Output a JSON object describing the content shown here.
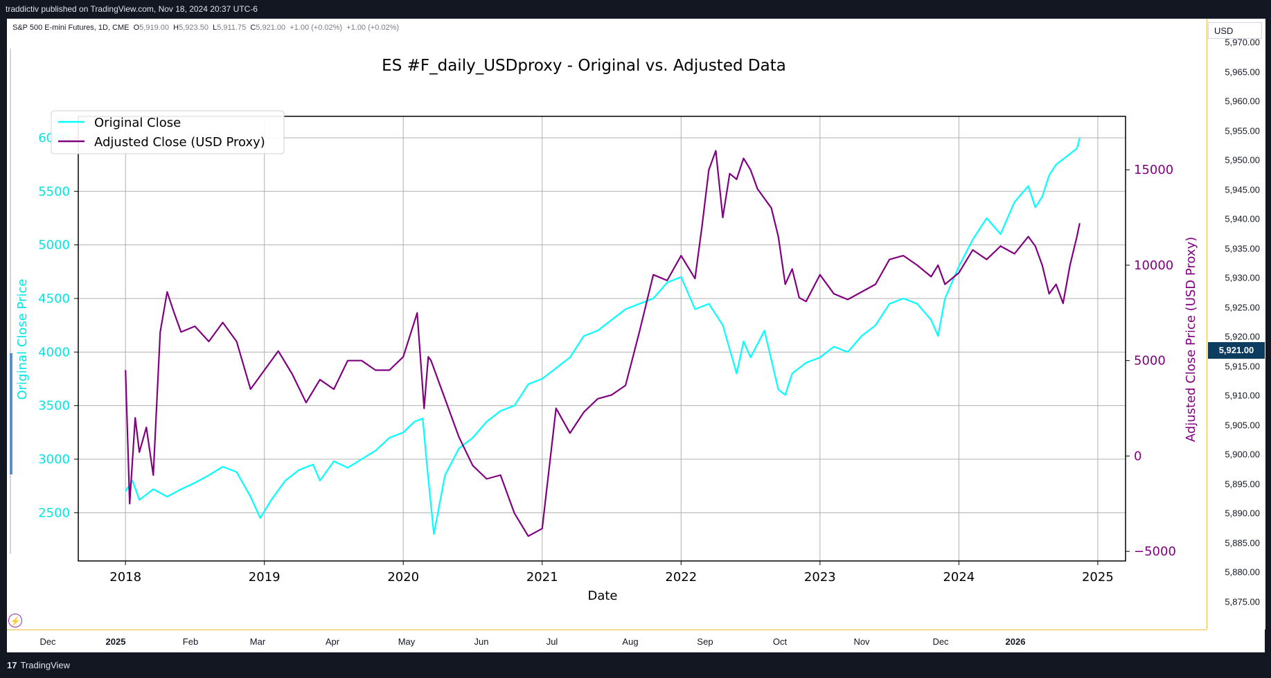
{
  "header": {
    "publisher": "traddictiv published on TradingView.com, Nov 18, 2024 20:37 UTC-6"
  },
  "symbol_legend": {
    "name": "S&P 500 E-mini Futures, 1D, CME",
    "o_label": "O",
    "o": "5,919.00",
    "h_label": "H",
    "h": "5,923.50",
    "l_label": "L",
    "l": "5,911.75",
    "c_label": "C",
    "c": "5,921.00",
    "change": "+1.00 (+0.02%)",
    "change2": "+1.00 (+0.02%)"
  },
  "price_axis": {
    "currency": "USD",
    "ticks": [
      "5,970.00",
      "5,965.00",
      "5,960.00",
      "5,955.00",
      "5,950.00",
      "5,945.00",
      "5,940.00",
      "5,935.00",
      "5,930.00",
      "5,925.00",
      "5,920.00",
      "5,915.00",
      "5,910.00",
      "5,905.00",
      "5,900.00",
      "5,895.00",
      "5,890.00",
      "5,885.00",
      "5,880.00",
      "5,875.00"
    ],
    "last_price": "5,921.00"
  },
  "time_axis": {
    "ticks": [
      "Dec",
      "2025",
      "Feb",
      "Mar",
      "Apr",
      "May",
      "Jun",
      "Jul",
      "Aug",
      "Sep",
      "Oct",
      "Nov",
      "Dec",
      "2026"
    ]
  },
  "footer": {
    "logo": "17",
    "brand": "TradingView"
  },
  "colors": {
    "original": "#00FFFF",
    "adjusted": "#800080",
    "price_label_bg": "#0d3c61"
  },
  "chart_data": {
    "type": "line",
    "title": "ES #F_daily_USDproxy - Original vs. Adjusted Data",
    "xlabel": "Date",
    "ylabel": "Original Close Price",
    "y2label": "Adjusted Close Price (USD Proxy)",
    "xlim": [
      2017.66,
      2025.2
    ],
    "ylim": [
      2050,
      6200
    ],
    "y2lim": [
      -5500,
      17800
    ],
    "x_ticks": [
      "2018",
      "2019",
      "2020",
      "2021",
      "2022",
      "2023",
      "2024",
      "2025"
    ],
    "y_ticks": [
      "2500",
      "3000",
      "3500",
      "4000",
      "4500",
      "5000",
      "5500",
      "6000"
    ],
    "y2_ticks": [
      "−5000",
      "0",
      "5000",
      "10000",
      "15000"
    ],
    "legend_position": "upper-left",
    "grid": true,
    "series": [
      {
        "name": "Original Close",
        "axis": "left",
        "color": "#00FFFF",
        "x": [
          2018.0,
          2018.05,
          2018.1,
          2018.2,
          2018.3,
          2018.4,
          2018.5,
          2018.6,
          2018.7,
          2018.8,
          2018.9,
          2018.97,
          2019.05,
          2019.15,
          2019.25,
          2019.35,
          2019.4,
          2019.5,
          2019.6,
          2019.7,
          2019.8,
          2019.9,
          2020.0,
          2020.08,
          2020.14,
          2020.17,
          2020.22,
          2020.3,
          2020.4,
          2020.5,
          2020.6,
          2020.7,
          2020.8,
          2020.9,
          2021.0,
          2021.1,
          2021.2,
          2021.3,
          2021.4,
          2021.5,
          2021.6,
          2021.7,
          2021.8,
          2021.9,
          2022.0,
          2022.1,
          2022.2,
          2022.3,
          2022.4,
          2022.45,
          2022.5,
          2022.6,
          2022.7,
          2022.75,
          2022.8,
          2022.9,
          2023.0,
          2023.1,
          2023.2,
          2023.3,
          2023.4,
          2023.5,
          2023.6,
          2023.7,
          2023.8,
          2023.85,
          2023.9,
          2024.0,
          2024.1,
          2024.2,
          2024.3,
          2024.4,
          2024.5,
          2024.55,
          2024.6,
          2024.65,
          2024.7,
          2024.8,
          2024.85,
          2024.87
        ],
        "values": [
          2700,
          2800,
          2620,
          2720,
          2650,
          2720,
          2780,
          2850,
          2930,
          2880,
          2650,
          2450,
          2620,
          2800,
          2900,
          2950,
          2800,
          2980,
          2920,
          3000,
          3080,
          3200,
          3250,
          3350,
          3380,
          2950,
          2300,
          2850,
          3100,
          3200,
          3350,
          3450,
          3500,
          3700,
          3750,
          3850,
          3950,
          4150,
          4200,
          4300,
          4400,
          4450,
          4500,
          4650,
          4700,
          4400,
          4450,
          4250,
          3800,
          4100,
          3950,
          4200,
          3650,
          3600,
          3800,
          3900,
          3950,
          4050,
          4000,
          4150,
          4250,
          4450,
          4500,
          4450,
          4300,
          4150,
          4500,
          4800,
          5050,
          5250,
          5100,
          5400,
          5550,
          5350,
          5450,
          5650,
          5750,
          5850,
          5900,
          6000
        ]
      },
      {
        "name": "Adjusted Close (USD Proxy)",
        "axis": "right",
        "color": "#800080",
        "x": [
          2018.0,
          2018.03,
          2018.07,
          2018.1,
          2018.15,
          2018.2,
          2018.25,
          2018.3,
          2018.35,
          2018.4,
          2018.5,
          2018.6,
          2018.7,
          2018.8,
          2018.9,
          2019.0,
          2019.1,
          2019.2,
          2019.3,
          2019.4,
          2019.5,
          2019.6,
          2019.7,
          2019.8,
          2019.9,
          2020.0,
          2020.1,
          2020.15,
          2020.18,
          2020.2,
          2020.3,
          2020.4,
          2020.5,
          2020.6,
          2020.7,
          2020.8,
          2020.9,
          2021.0,
          2021.1,
          2021.2,
          2021.3,
          2021.4,
          2021.5,
          2021.6,
          2021.7,
          2021.8,
          2021.9,
          2022.0,
          2022.1,
          2022.15,
          2022.2,
          2022.25,
          2022.3,
          2022.35,
          2022.4,
          2022.45,
          2022.5,
          2022.55,
          2022.6,
          2022.65,
          2022.7,
          2022.75,
          2022.8,
          2022.85,
          2022.9,
          2023.0,
          2023.1,
          2023.2,
          2023.3,
          2023.4,
          2023.5,
          2023.6,
          2023.7,
          2023.8,
          2023.85,
          2023.9,
          2024.0,
          2024.1,
          2024.2,
          2024.3,
          2024.4,
          2024.5,
          2024.55,
          2024.6,
          2024.65,
          2024.7,
          2024.75,
          2024.8,
          2024.85,
          2024.87
        ],
        "values": [
          4500,
          -2500,
          2000,
          200,
          1500,
          -1000,
          6500,
          8600,
          7500,
          6500,
          6800,
          6000,
          7000,
          6000,
          3500,
          4500,
          5500,
          4300,
          2800,
          4000,
          3500,
          5000,
          5000,
          4500,
          4500,
          5200,
          7500,
          2500,
          5200,
          5000,
          3000,
          1000,
          -500,
          -1200,
          -1000,
          -3000,
          -4200,
          -3800,
          2500,
          1200,
          2300,
          3000,
          3200,
          3700,
          6500,
          9500,
          9200,
          10500,
          9300,
          12000,
          15000,
          16000,
          12500,
          14800,
          14500,
          15600,
          15000,
          14000,
          13500,
          13000,
          11500,
          9000,
          9800,
          8300,
          8100,
          9500,
          8500,
          8200,
          8600,
          9000,
          10300,
          10500,
          10000,
          9400,
          10000,
          9000,
          9600,
          10800,
          10300,
          11000,
          10600,
          11500,
          11000,
          10000,
          8500,
          9000,
          8000,
          10000,
          11500,
          12200
        ]
      }
    ]
  }
}
